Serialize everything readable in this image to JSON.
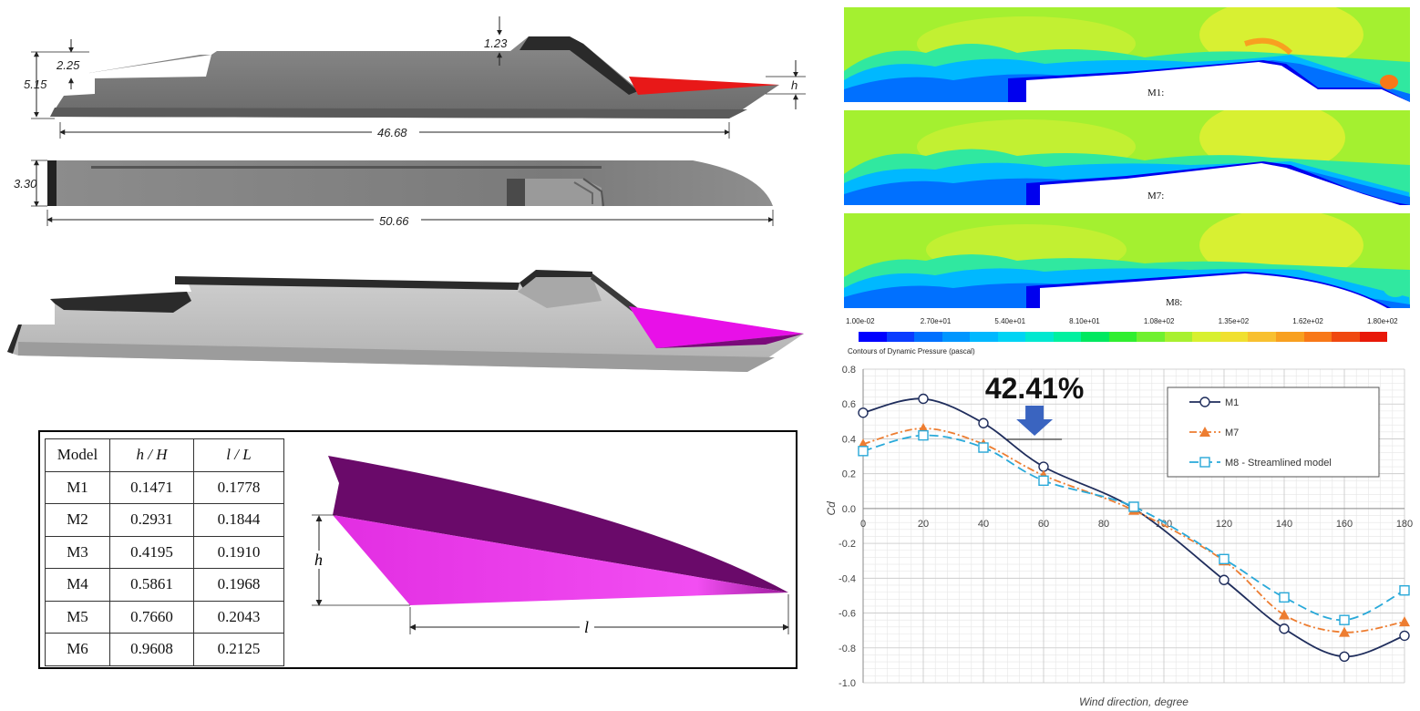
{
  "hull_drawing": {
    "dims": {
      "top_height": "1.23",
      "stern_step": "2.25",
      "overall_height": "5.15",
      "bow_h_label": "h",
      "side_length": "46.68",
      "beam": "3.30",
      "top_length": "50.66"
    }
  },
  "contours": {
    "panels": [
      {
        "label": "M1:"
      },
      {
        "label": "M7:"
      },
      {
        "label": "M8:"
      }
    ],
    "legend": {
      "ticks": [
        "1.00e-02",
        "2.70e+01",
        "5.40e+01",
        "8.10e+01",
        "1.08e+02",
        "1.35e+02",
        "1.62e+02",
        "1.80e+02"
      ],
      "caption": "Contours of Dynamic Pressure (pascal)",
      "colors": [
        "#0000ff",
        "#0a3cff",
        "#0070ff",
        "#0096ff",
        "#00b8ff",
        "#00d4f4",
        "#00e8d0",
        "#00f0a0",
        "#00e860",
        "#30ee30",
        "#70f030",
        "#a8f030",
        "#d8f030",
        "#f0e030",
        "#f8c030",
        "#f8a020",
        "#f87818",
        "#f04810",
        "#e81808"
      ]
    }
  },
  "model_table": {
    "headers": {
      "model": "Model",
      "h_over_H": "h / H",
      "l_over_L": "l / L"
    },
    "rows": [
      {
        "model": "M1",
        "h": "0.1471",
        "l": "0.1778"
      },
      {
        "model": "M2",
        "h": "0.2931",
        "l": "0.1844"
      },
      {
        "model": "M3",
        "h": "0.4195",
        "l": "0.1910"
      },
      {
        "model": "M4",
        "h": "0.5861",
        "l": "0.1968"
      },
      {
        "model": "M5",
        "h": "0.7660",
        "l": "0.2043"
      },
      {
        "model": "M6",
        "h": "0.9608",
        "l": "0.2125"
      }
    ],
    "bow_labels": {
      "h": "h",
      "l": "l"
    }
  },
  "chart_data": {
    "type": "line",
    "xlabel": "Wind direction, degree",
    "ylabel": "Cd",
    "xlim": [
      0,
      180
    ],
    "ylim": [
      -1.0,
      0.8
    ],
    "xticks": [
      0,
      20,
      40,
      60,
      80,
      100,
      120,
      140,
      160,
      180
    ],
    "yticks": [
      -1.0,
      -0.8,
      -0.6,
      -0.4,
      -0.2,
      0.0,
      0.2,
      0.4,
      0.6,
      0.8
    ],
    "grid": true,
    "legend_position": "top-right",
    "annotation": {
      "text": "42.41%",
      "x": 57
    },
    "series": [
      {
        "name": "M1",
        "color": "#1f2d5c",
        "marker": "circle",
        "dash": "",
        "x": [
          0,
          20,
          40,
          60,
          90,
          120,
          140,
          160,
          180
        ],
        "y": [
          0.55,
          0.63,
          0.49,
          0.24,
          0.0,
          -0.41,
          -0.69,
          -0.85,
          -0.73
        ]
      },
      {
        "name": "M7",
        "color": "#ed7d31",
        "marker": "triangle",
        "dash": "8 3 2 3",
        "x": [
          0,
          20,
          40,
          60,
          90,
          120,
          140,
          160,
          180
        ],
        "y": [
          0.37,
          0.46,
          0.37,
          0.19,
          -0.01,
          -0.3,
          -0.61,
          -0.71,
          -0.65
        ]
      },
      {
        "name": "M8 - Streamlined model",
        "color": "#29a9d9",
        "marker": "square",
        "dash": "10 5",
        "x": [
          0,
          20,
          40,
          60,
          90,
          120,
          140,
          160,
          180
        ],
        "y": [
          0.33,
          0.42,
          0.35,
          0.16,
          0.01,
          -0.29,
          -0.51,
          -0.64,
          -0.47
        ]
      }
    ]
  }
}
